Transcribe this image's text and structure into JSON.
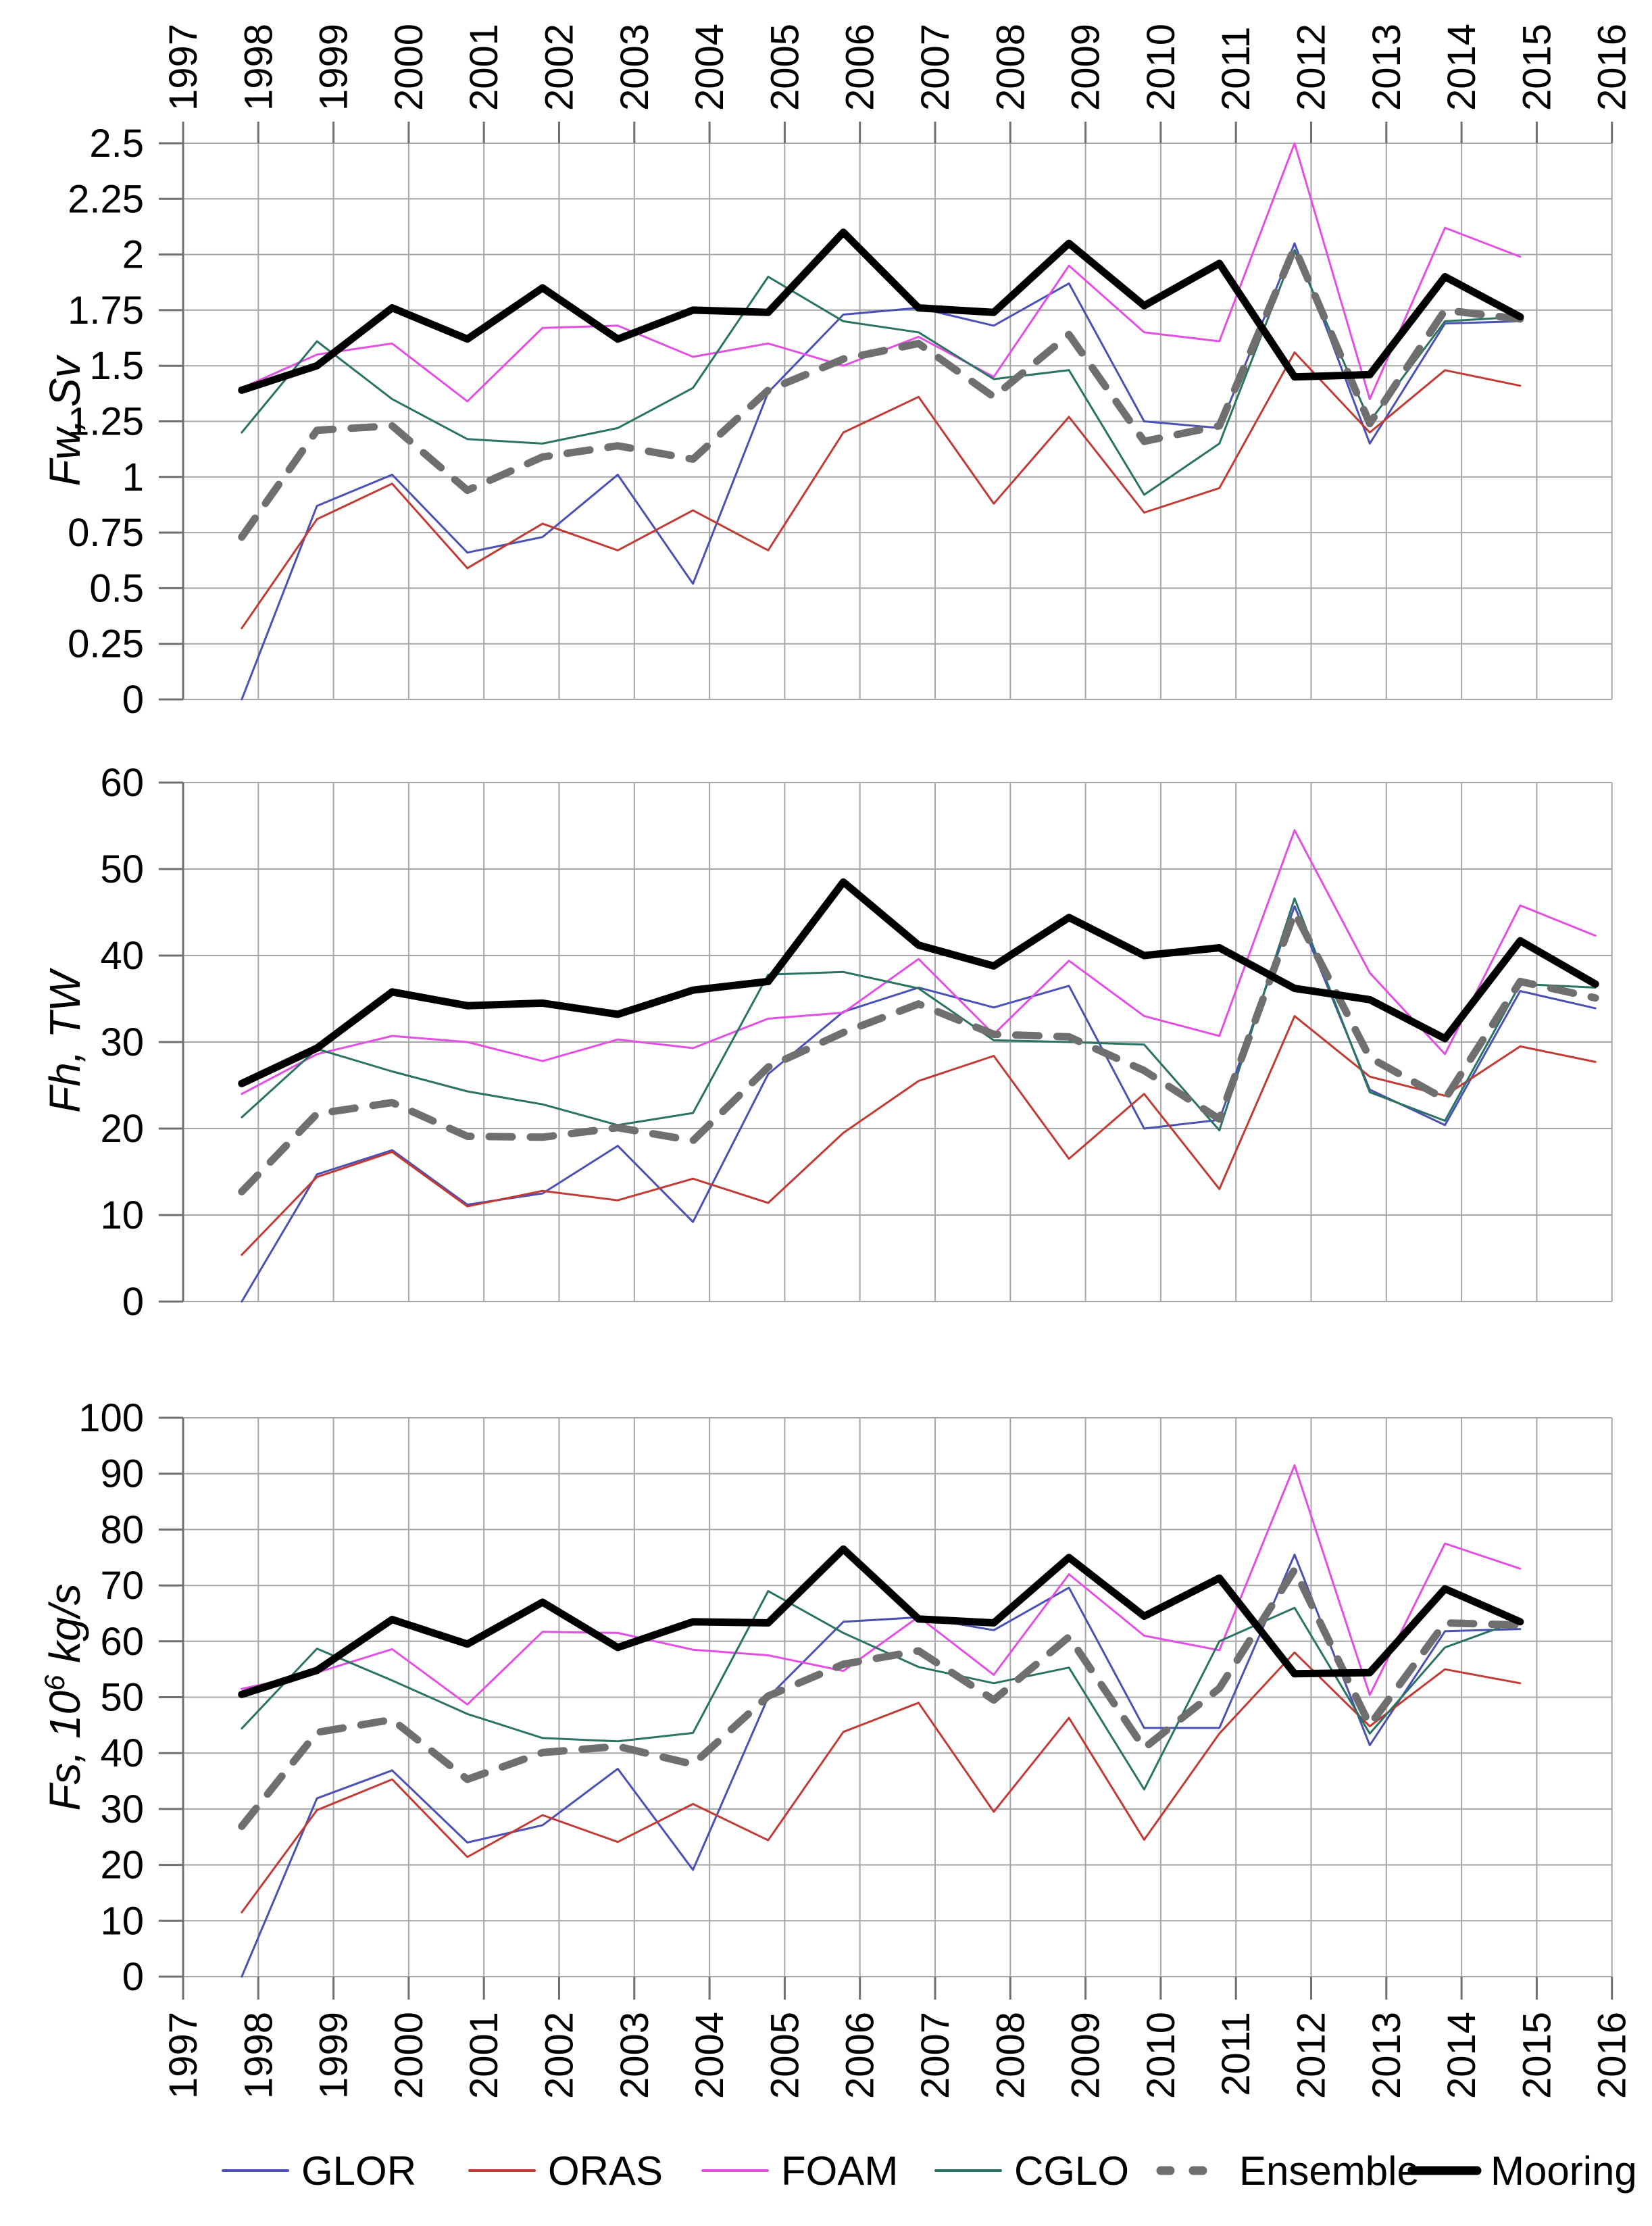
{
  "figure_bg": "#ffffff",
  "colors": {
    "grid": "#a6a6a6",
    "axis": "#6f6f6f",
    "GLOR": "#4a50b4",
    "ORAS": "#c23a34",
    "FOAM": "#e24fe2",
    "CGLO": "#2a7262",
    "Ensemble": "#6f6f6f",
    "Mooring": "#000000"
  },
  "legend": {
    "entries": [
      {
        "name": "GLOR",
        "style": "thin"
      },
      {
        "name": "ORAS",
        "style": "thin"
      },
      {
        "name": "FOAM",
        "style": "thin"
      },
      {
        "name": "CGLO",
        "style": "thin"
      },
      {
        "name": "Ensemble",
        "style": "dashed-thick"
      },
      {
        "name": "Mooring",
        "style": "solid-thick"
      }
    ]
  },
  "x_axis": {
    "tick_years": [
      "1997",
      "1998",
      "1999",
      "2000",
      "2001",
      "2002",
      "2003",
      "2004",
      "2005",
      "2006",
      "2007",
      "2008",
      "2009",
      "2010",
      "2011",
      "2012",
      "2013",
      "2014",
      "2015",
      "2016"
    ],
    "top_labels_shown": true,
    "bottom_labels_shown": true
  },
  "chart_data": [
    {
      "type": "line",
      "panel": 1,
      "ylabel_parts": {
        "prefix": "Fw",
        "sep": ", ",
        "sup": "",
        "suffix": "Sv"
      },
      "ylabel_text": "Fw, Sv",
      "ylim": [
        0,
        2.5
      ],
      "ytick_step": 0.25,
      "ytick_labels": [
        "0",
        "0.25",
        "0.5",
        "0.75",
        "1",
        "1.25",
        "1.5",
        "1.75",
        "2",
        "2.25",
        "2.5"
      ],
      "grid": true,
      "x": [
        1997,
        1998,
        1999,
        2000,
        2001,
        2002,
        2003,
        2004,
        2005,
        2006,
        2007,
        2008,
        2009,
        2010,
        2011,
        2012,
        2013,
        2014
      ],
      "series": [
        {
          "name": "GLOR",
          "values": [
            0.0,
            0.87,
            1.01,
            0.66,
            0.73,
            1.01,
            0.52,
            1.38,
            1.73,
            1.76,
            1.68,
            1.87,
            1.25,
            1.22,
            2.05,
            1.15,
            1.69,
            1.7
          ]
        },
        {
          "name": "ORAS",
          "values": [
            0.32,
            0.81,
            0.97,
            0.59,
            0.79,
            0.67,
            0.85,
            0.67,
            1.2,
            1.36,
            0.88,
            1.27,
            0.84,
            0.95,
            1.56,
            1.2,
            1.48,
            1.41
          ]
        },
        {
          "name": "FOAM",
          "values": [
            1.4,
            1.55,
            1.6,
            1.34,
            1.67,
            1.68,
            1.54,
            1.6,
            1.5,
            1.63,
            1.45,
            1.95,
            1.65,
            1.61,
            2.5,
            1.35,
            2.12,
            1.99
          ]
        },
        {
          "name": "CGLO",
          "values": [
            1.2,
            1.61,
            1.35,
            1.17,
            1.15,
            1.22,
            1.4,
            1.9,
            1.7,
            1.65,
            1.44,
            1.48,
            0.92,
            1.15,
            2.02,
            1.25,
            1.7,
            1.72
          ]
        },
        {
          "name": "Ensemble",
          "values": [
            0.73,
            1.21,
            1.23,
            0.94,
            1.09,
            1.14,
            1.08,
            1.39,
            1.53,
            1.6,
            1.36,
            1.64,
            1.16,
            1.23,
            2.03,
            1.24,
            1.75,
            1.71
          ]
        },
        {
          "name": "Mooring",
          "values": [
            1.39,
            1.5,
            1.76,
            1.62,
            1.85,
            1.62,
            1.75,
            1.74,
            2.1,
            1.76,
            1.74,
            2.05,
            1.77,
            1.96,
            1.45,
            1.46,
            1.9,
            1.72
          ]
        }
      ]
    },
    {
      "type": "line",
      "panel": 2,
      "ylabel_parts": {
        "prefix": "Fh",
        "sep": ", ",
        "sup": "",
        "suffix": "TW"
      },
      "ylabel_text": "Fh, TW",
      "ylim": [
        0,
        60
      ],
      "ytick_step": 10,
      "ytick_labels": [
        "0",
        "10",
        "20",
        "30",
        "40",
        "50",
        "60"
      ],
      "grid": true,
      "x": [
        1997,
        1998,
        1999,
        2000,
        2001,
        2002,
        2003,
        2004,
        2005,
        2006,
        2007,
        2008,
        2009,
        2010,
        2011,
        2012,
        2013,
        2014,
        2015
      ],
      "series": [
        {
          "name": "GLOR",
          "values": [
            0.0,
            14.7,
            17.5,
            11.2,
            12.5,
            18.0,
            9.2,
            26.3,
            33.5,
            36.3,
            34.0,
            36.5,
            20.0,
            21.0,
            45.7,
            24.5,
            20.4,
            35.9,
            33.9
          ]
        },
        {
          "name": "ORAS",
          "values": [
            5.4,
            14.4,
            17.3,
            11.0,
            12.8,
            11.7,
            14.2,
            11.4,
            19.5,
            25.5,
            28.4,
            16.5,
            24.0,
            13.0,
            33.0,
            26.0,
            23.8,
            29.5,
            27.7
          ]
        },
        {
          "name": "FOAM",
          "values": [
            24.0,
            28.6,
            30.7,
            30.0,
            27.8,
            30.3,
            29.3,
            32.7,
            33.4,
            39.6,
            30.9,
            39.4,
            33.0,
            30.7,
            54.5,
            38.0,
            28.6,
            45.8,
            42.3
          ]
        },
        {
          "name": "CGLO",
          "values": [
            21.3,
            29.2,
            26.6,
            24.3,
            22.8,
            20.4,
            21.8,
            37.8,
            38.1,
            36.2,
            30.2,
            30.0,
            29.7,
            19.8,
            46.6,
            24.2,
            20.9,
            36.7,
            36.3
          ]
        },
        {
          "name": "Ensemble",
          "values": [
            12.7,
            21.7,
            23.0,
            19.1,
            19.0,
            20.1,
            18.6,
            27.1,
            31.1,
            34.4,
            30.9,
            30.6,
            26.7,
            21.1,
            45.0,
            28.2,
            23.4,
            37.0,
            35.1
          ]
        },
        {
          "name": "Mooring",
          "values": [
            25.2,
            29.3,
            35.8,
            34.2,
            34.5,
            33.2,
            36.0,
            37.0,
            48.5,
            41.2,
            38.8,
            44.4,
            40.0,
            40.9,
            36.2,
            34.9,
            30.4,
            41.7,
            36.7
          ]
        }
      ]
    },
    {
      "type": "line",
      "panel": 3,
      "ylabel_parts": {
        "prefix": "Fs",
        "sep": ", 10",
        "sup": "6",
        "suffix": " kg/s"
      },
      "ylabel_text": "Fs, 10^6 kg/s",
      "ylim": [
        0,
        100
      ],
      "ytick_step": 10,
      "ytick_labels": [
        "0",
        "10",
        "20",
        "30",
        "40",
        "50",
        "60",
        "70",
        "80",
        "90",
        "100"
      ],
      "grid": true,
      "x": [
        1997,
        1998,
        1999,
        2000,
        2001,
        2002,
        2003,
        2004,
        2005,
        2006,
        2007,
        2008,
        2009,
        2010,
        2011,
        2012,
        2013,
        2014
      ],
      "series": [
        {
          "name": "GLOR",
          "values": [
            0.0,
            31.9,
            36.9,
            24.0,
            27.1,
            37.2,
            19.1,
            50.0,
            63.5,
            64.3,
            62.0,
            69.6,
            44.5,
            44.5,
            75.5,
            41.4,
            61.8,
            62.2
          ]
        },
        {
          "name": "ORAS",
          "values": [
            11.5,
            29.8,
            35.3,
            21.4,
            28.9,
            24.1,
            30.9,
            24.4,
            43.8,
            49.0,
            29.5,
            46.3,
            24.5,
            43.5,
            58.0,
            44.8,
            55.0,
            52.5
          ]
        },
        {
          "name": "FOAM",
          "values": [
            51.5,
            54.4,
            58.6,
            48.7,
            61.7,
            61.5,
            58.5,
            57.5,
            54.7,
            64.4,
            54.0,
            72.0,
            61.0,
            58.4,
            91.5,
            50.4,
            77.5,
            73.0
          ]
        },
        {
          "name": "CGLO",
          "values": [
            44.4,
            58.7,
            53.0,
            47.0,
            42.7,
            42.1,
            43.6,
            69.0,
            61.5,
            55.4,
            52.5,
            55.3,
            33.5,
            60.0,
            66.0,
            43.5,
            58.9,
            63.8
          ]
        },
        {
          "name": "Ensemble",
          "values": [
            26.9,
            43.7,
            46.0,
            35.3,
            40.1,
            41.2,
            38.0,
            50.2,
            55.9,
            58.3,
            49.5,
            60.8,
            40.9,
            51.6,
            72.8,
            45.0,
            63.3,
            62.9
          ]
        },
        {
          "name": "Mooring",
          "values": [
            50.5,
            54.8,
            63.9,
            59.5,
            67.0,
            58.9,
            63.5,
            63.3,
            76.5,
            64.0,
            63.3,
            75.0,
            64.5,
            71.3,
            54.2,
            54.4,
            69.4,
            63.5
          ]
        }
      ]
    }
  ]
}
